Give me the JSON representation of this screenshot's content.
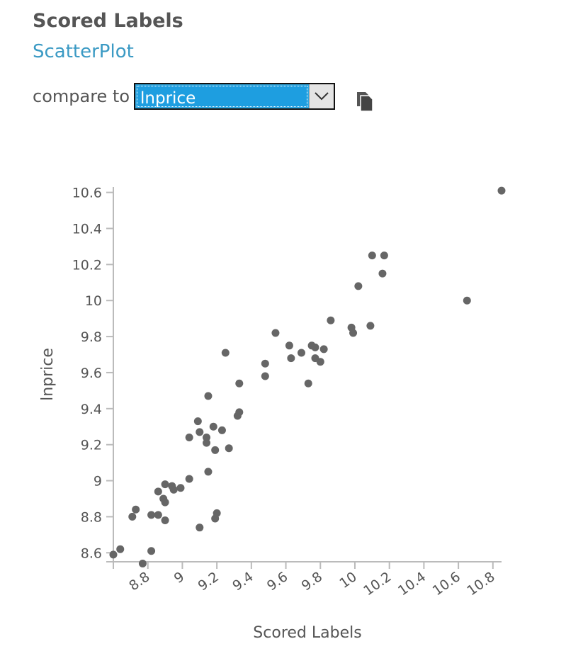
{
  "header": {
    "title": "Scored Labels",
    "subtitle": "ScatterPlot"
  },
  "compare": {
    "label": "compare to",
    "selected": "lnprice"
  },
  "icons": {
    "dropdown": "chevron-down-icon",
    "copy": "copy-icon"
  },
  "colors": {
    "point": "#666666",
    "axis": "#bbbbbb",
    "select_bg": "#1e9ee0",
    "link": "#3b9ac4"
  },
  "chart_data": {
    "type": "scatter",
    "xlabel": "Scored Labels",
    "ylabel": "lnprice",
    "xlim": [
      8.6,
      10.85
    ],
    "ylim": [
      8.55,
      10.63
    ],
    "x_ticks": [
      8.8,
      9,
      9.2,
      9.4,
      9.6,
      9.8,
      10,
      10.2,
      10.4,
      10.6,
      10.8
    ],
    "x_tick_labels": [
      "8.8",
      "9",
      "9.2",
      "9.4",
      "9.6",
      "9.8",
      "10",
      "10.2",
      "10.4",
      "10.6",
      "10.8"
    ],
    "y_ticks": [
      8.6,
      8.8,
      9,
      9.2,
      9.4,
      9.6,
      9.8,
      10,
      10.2,
      10.4,
      10.6
    ],
    "y_tick_labels": [
      "8.6",
      "8.8",
      "9",
      "9.2",
      "9.4",
      "9.6",
      "9.8",
      "10",
      "10.2",
      "10.4",
      "10.6"
    ],
    "points": [
      [
        8.6,
        8.59
      ],
      [
        8.64,
        8.62
      ],
      [
        8.77,
        8.54
      ],
      [
        8.82,
        8.61
      ],
      [
        8.71,
        8.8
      ],
      [
        8.73,
        8.84
      ],
      [
        8.82,
        8.81
      ],
      [
        8.86,
        8.81
      ],
      [
        8.9,
        8.78
      ],
      [
        8.86,
        8.94
      ],
      [
        8.89,
        8.9
      ],
      [
        8.9,
        8.88
      ],
      [
        8.9,
        8.98
      ],
      [
        8.94,
        8.97
      ],
      [
        8.95,
        8.95
      ],
      [
        8.99,
        8.96
      ],
      [
        9.04,
        9.01
      ],
      [
        9.04,
        9.24
      ],
      [
        9.09,
        9.33
      ],
      [
        9.1,
        9.27
      ],
      [
        9.1,
        8.74
      ],
      [
        9.14,
        9.24
      ],
      [
        9.14,
        9.21
      ],
      [
        9.15,
        9.05
      ],
      [
        9.15,
        9.47
      ],
      [
        9.18,
        9.3
      ],
      [
        9.19,
        9.17
      ],
      [
        9.19,
        8.79
      ],
      [
        9.2,
        8.82
      ],
      [
        9.23,
        9.28
      ],
      [
        9.25,
        9.71
      ],
      [
        9.27,
        9.18
      ],
      [
        9.32,
        9.36
      ],
      [
        9.33,
        9.38
      ],
      [
        9.33,
        9.54
      ],
      [
        9.48,
        9.65
      ],
      [
        9.48,
        9.58
      ],
      [
        9.54,
        9.82
      ],
      [
        9.62,
        9.75
      ],
      [
        9.63,
        9.68
      ],
      [
        9.69,
        9.71
      ],
      [
        9.73,
        9.54
      ],
      [
        9.75,
        9.75
      ],
      [
        9.77,
        9.74
      ],
      [
        9.77,
        9.68
      ],
      [
        9.8,
        9.66
      ],
      [
        9.82,
        9.73
      ],
      [
        9.86,
        9.89
      ],
      [
        9.98,
        9.85
      ],
      [
        9.99,
        9.82
      ],
      [
        10.02,
        10.08
      ],
      [
        10.09,
        9.86
      ],
      [
        10.1,
        10.25
      ],
      [
        10.16,
        10.15
      ],
      [
        10.17,
        10.25
      ],
      [
        10.65,
        10.0
      ],
      [
        10.85,
        10.61
      ]
    ]
  }
}
